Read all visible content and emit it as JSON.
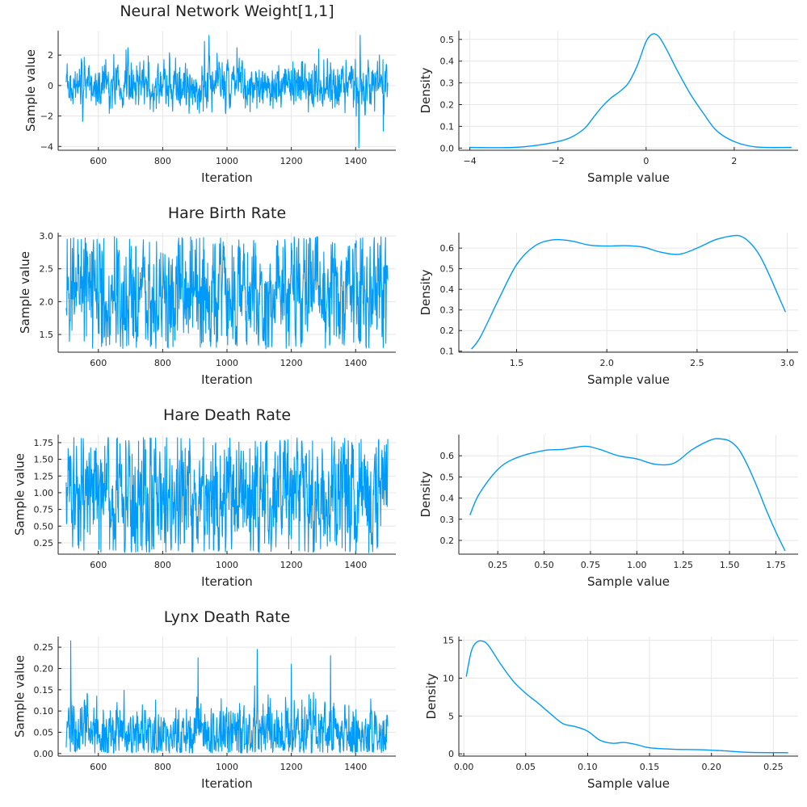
{
  "colors": {
    "series": "#009af9",
    "axis": "#222222",
    "grid": "#e6e6e6"
  },
  "chart_data": [
    {
      "type": "line",
      "title": "Neural Network Weight[1,1]",
      "xlabel": "Iteration",
      "ylabel": "Sample value",
      "xlim": [
        475,
        1525
      ],
      "ylim": [
        -4.25,
        3.6
      ],
      "xticks": [
        600,
        800,
        1000,
        1200,
        1400
      ],
      "yticks": [
        -4,
        -2,
        0,
        2
      ],
      "ytick_labels": [
        "−4",
        "−2",
        "0",
        "2"
      ],
      "x_range": [
        500,
        1500
      ],
      "trace": {
        "center": 0.0,
        "spread": 0.75,
        "min": -4.1,
        "max": 3.3,
        "spikes": [
          [
            1410,
            -4.1
          ],
          [
            1414,
            3.3
          ],
          [
            930,
            2.9
          ],
          [
            1486,
            -3.0
          ]
        ]
      },
      "grid": true,
      "legend": "none"
    },
    {
      "type": "line",
      "xlabel": "Sample value",
      "ylabel": "Density",
      "xlim": [
        -4.25,
        3.45
      ],
      "ylim": [
        -0.01,
        0.54
      ],
      "xticks": [
        -4,
        -2,
        0,
        2
      ],
      "xtick_labels": [
        "−4",
        "−2",
        "0",
        "2"
      ],
      "yticks": [
        0,
        0.1,
        0.2,
        0.3,
        0.4,
        0.5
      ],
      "ytick_labels": [
        "0.0",
        "0.1",
        "0.2",
        "0.3",
        "0.4",
        "0.5"
      ],
      "x": [
        -4.0,
        -3.5,
        -3.0,
        -2.5,
        -2.0,
        -1.7,
        -1.4,
        -1.2,
        -1.0,
        -0.8,
        -0.6,
        -0.4,
        -0.2,
        0.0,
        0.15,
        0.3,
        0.5,
        0.7,
        1.0,
        1.3,
        1.6,
        2.0,
        2.5,
        3.3
      ],
      "y": [
        0.003,
        0.002,
        0.003,
        0.012,
        0.03,
        0.05,
        0.09,
        0.14,
        0.19,
        0.23,
        0.26,
        0.3,
        0.38,
        0.49,
        0.525,
        0.51,
        0.44,
        0.36,
        0.25,
        0.16,
        0.08,
        0.03,
        0.005,
        0.003
      ],
      "grid": true,
      "legend": "none"
    },
    {
      "type": "line",
      "title": "Hare Birth Rate",
      "xlabel": "Iteration",
      "ylabel": "Sample value",
      "xlim": [
        475,
        1525
      ],
      "ylim": [
        1.23,
        3.05
      ],
      "xticks": [
        600,
        800,
        1000,
        1200,
        1400
      ],
      "yticks": [
        1.5,
        2.0,
        2.5,
        3.0
      ],
      "ytick_labels": [
        "1.5",
        "2.0",
        "2.5",
        "3.0"
      ],
      "x_range": [
        500,
        1500
      ],
      "trace": {
        "center": 2.12,
        "spread": 0.45,
        "min": 1.28,
        "max": 2.99,
        "spikes": []
      },
      "grid": true,
      "legend": "none"
    },
    {
      "type": "line",
      "xlabel": "Sample value",
      "ylabel": "Density",
      "xlim": [
        1.18,
        3.06
      ],
      "ylim": [
        0.095,
        0.675
      ],
      "xticks": [
        1.5,
        2.0,
        2.5,
        3.0
      ],
      "xtick_labels": [
        "1.5",
        "2.0",
        "2.5",
        "3.0"
      ],
      "yticks": [
        0.1,
        0.2,
        0.3,
        0.4,
        0.5,
        0.6
      ],
      "ytick_labels": [
        "0.1",
        "0.2",
        "0.3",
        "0.4",
        "0.5",
        "0.6"
      ],
      "x": [
        1.25,
        1.3,
        1.4,
        1.5,
        1.6,
        1.7,
        1.8,
        1.9,
        2.0,
        2.1,
        2.2,
        2.3,
        2.4,
        2.5,
        2.6,
        2.7,
        2.75,
        2.8,
        2.85,
        2.9,
        2.95,
        2.99
      ],
      "y": [
        0.11,
        0.17,
        0.35,
        0.52,
        0.61,
        0.64,
        0.635,
        0.615,
        0.61,
        0.612,
        0.605,
        0.58,
        0.57,
        0.6,
        0.64,
        0.66,
        0.655,
        0.62,
        0.56,
        0.47,
        0.37,
        0.29
      ],
      "grid": true,
      "legend": "none"
    },
    {
      "type": "line",
      "title": "Hare Death Rate",
      "xlabel": "Iteration",
      "ylabel": "Sample value",
      "xlim": [
        475,
        1525
      ],
      "ylim": [
        0.08,
        1.87
      ],
      "xticks": [
        600,
        800,
        1000,
        1200,
        1400
      ],
      "yticks": [
        0.25,
        0.5,
        0.75,
        1.0,
        1.25,
        1.5,
        1.75
      ],
      "ytick_labels": [
        "0.25",
        "0.50",
        "0.75",
        "1.00",
        "1.25",
        "1.50",
        "1.75"
      ],
      "x_range": [
        500,
        1500
      ],
      "trace": {
        "center": 0.97,
        "spread": 0.45,
        "min": 0.1,
        "max": 1.83,
        "spikes": []
      },
      "grid": true,
      "legend": "none"
    },
    {
      "type": "line",
      "xlabel": "Sample value",
      "ylabel": "Density",
      "xlim": [
        0.04,
        1.87
      ],
      "ylim": [
        0.135,
        0.7
      ],
      "xticks": [
        0.25,
        0.5,
        0.75,
        1.0,
        1.25,
        1.5,
        1.75
      ],
      "xtick_labels": [
        "0.25",
        "0.50",
        "0.75",
        "1.00",
        "1.25",
        "1.50",
        "1.75"
      ],
      "yticks": [
        0.2,
        0.3,
        0.4,
        0.5,
        0.6
      ],
      "ytick_labels": [
        "0.2",
        "0.3",
        "0.4",
        "0.5",
        "0.6"
      ],
      "x": [
        0.1,
        0.15,
        0.25,
        0.35,
        0.5,
        0.6,
        0.72,
        0.8,
        0.9,
        1.0,
        1.1,
        1.2,
        1.3,
        1.4,
        1.45,
        1.5,
        1.55,
        1.6,
        1.65,
        1.7,
        1.75,
        1.8
      ],
      "y": [
        0.32,
        0.42,
        0.535,
        0.59,
        0.625,
        0.63,
        0.645,
        0.63,
        0.6,
        0.585,
        0.56,
        0.565,
        0.63,
        0.675,
        0.68,
        0.67,
        0.63,
        0.55,
        0.45,
        0.34,
        0.24,
        0.15
      ],
      "grid": true,
      "legend": "none"
    },
    {
      "type": "line",
      "title": "Lynx Death Rate",
      "xlabel": "Iteration",
      "ylabel": "Sample value",
      "xlim": [
        475,
        1525
      ],
      "ylim": [
        -0.006,
        0.275
      ],
      "xticks": [
        600,
        800,
        1000,
        1200,
        1400
      ],
      "yticks": [
        0,
        0.05,
        0.1,
        0.15,
        0.2,
        0.25
      ],
      "ytick_labels": [
        "0.00",
        "0.05",
        "0.10",
        "0.15",
        "0.20",
        "0.25"
      ],
      "x_range": [
        500,
        1500
      ],
      "trace": {
        "center": 0.045,
        "spread": 0.035,
        "min": 0.001,
        "max": 0.265,
        "spikes": [
          [
            514,
            0.265
          ],
          [
            1094,
            0.245
          ],
          [
            1322,
            0.23
          ],
          [
            910,
            0.225
          ],
          [
            1200,
            0.21
          ]
        ]
      },
      "grid": true,
      "legend": "none"
    },
    {
      "type": "line",
      "xlabel": "Sample value",
      "ylabel": "Density",
      "xlim": [
        -0.004,
        0.27
      ],
      "ylim": [
        -0.3,
        15.5
      ],
      "xticks": [
        0,
        0.05,
        0.1,
        0.15,
        0.2,
        0.25
      ],
      "xtick_labels": [
        "0.00",
        "0.05",
        "0.10",
        "0.15",
        "0.20",
        "0.25"
      ],
      "yticks": [
        0,
        5,
        10,
        15
      ],
      "ytick_labels": [
        "0",
        "5",
        "10",
        "15"
      ],
      "x": [
        0.002,
        0.006,
        0.01,
        0.015,
        0.02,
        0.03,
        0.04,
        0.05,
        0.06,
        0.07,
        0.08,
        0.09,
        0.1,
        0.11,
        0.12,
        0.13,
        0.14,
        0.15,
        0.17,
        0.19,
        0.21,
        0.23,
        0.262
      ],
      "y": [
        10.2,
        13.5,
        14.7,
        14.9,
        14.3,
        11.8,
        9.6,
        8.0,
        6.7,
        5.3,
        4.0,
        3.6,
        3.0,
        1.8,
        1.4,
        1.5,
        1.2,
        0.8,
        0.6,
        0.55,
        0.4,
        0.2,
        0.15
      ],
      "grid": true,
      "legend": "none"
    }
  ]
}
